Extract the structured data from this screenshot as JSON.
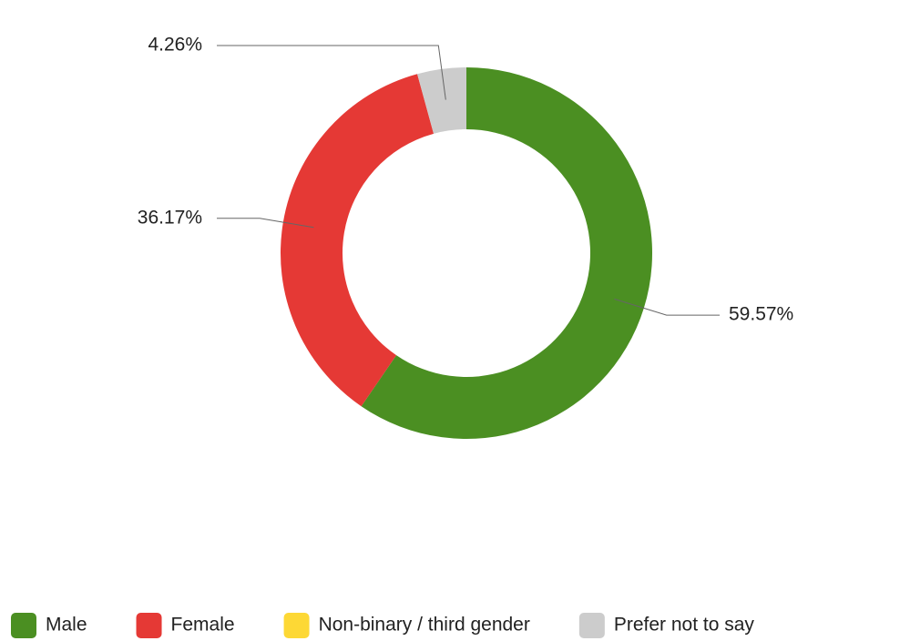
{
  "chart_data": {
    "type": "donut",
    "categories": [
      "Male",
      "Female",
      "Non-binary / third gender",
      "Prefer not to say"
    ],
    "values": [
      59.57,
      36.17,
      0,
      4.26
    ],
    "value_labels": [
      "59.57%",
      "36.17%",
      null,
      "4.26%"
    ],
    "colors": [
      "#4b8f22",
      "#e53935",
      "#fdd835",
      "#cccccc"
    ],
    "legend": "bottom"
  }
}
